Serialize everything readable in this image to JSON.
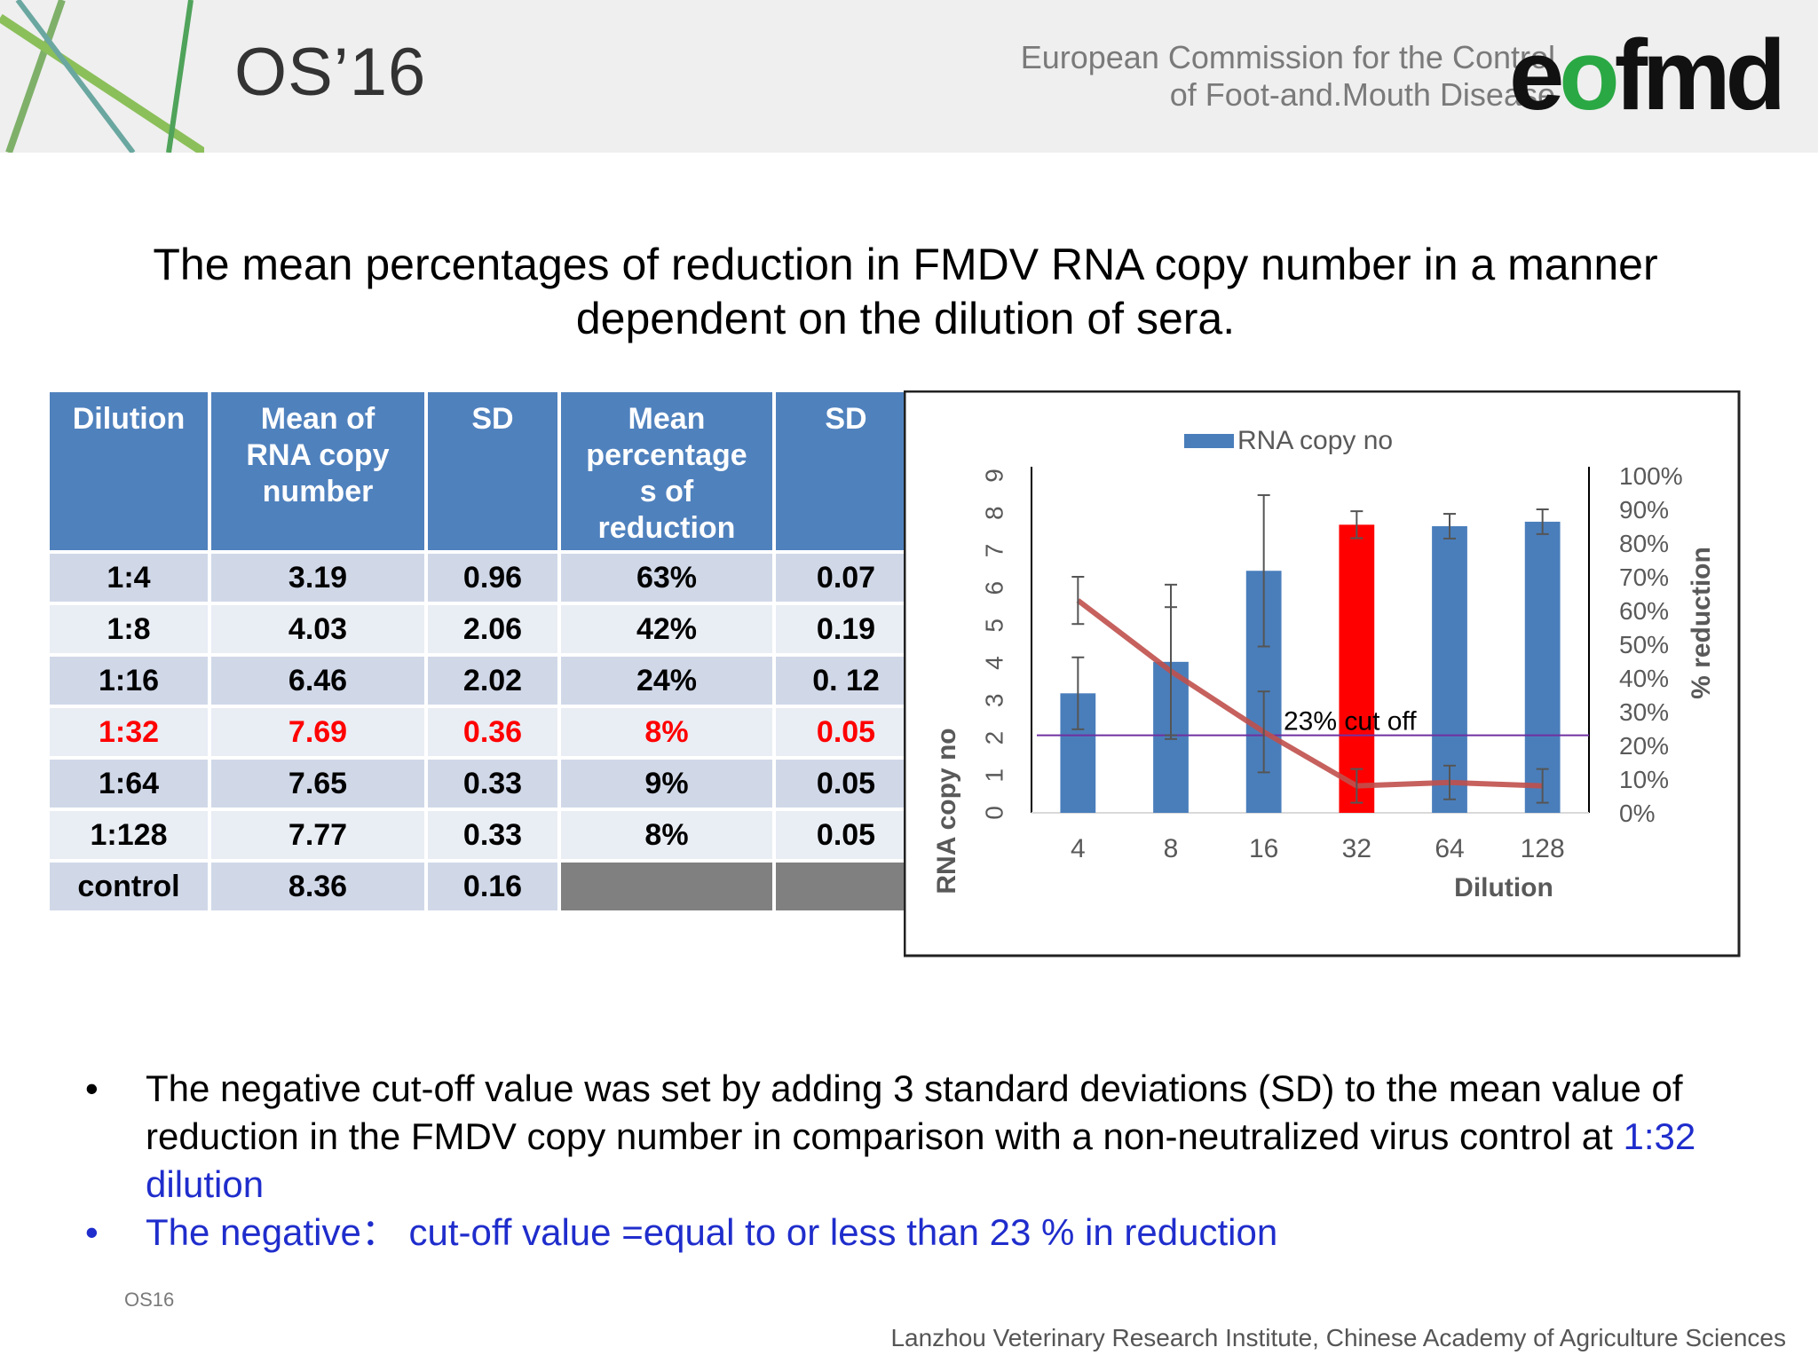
{
  "header": {
    "conference": "OS’16",
    "commission_line1": "European Commission for the Control",
    "commission_line2": "of Foot-and.Mouth Disease",
    "logo_a": "e",
    "logo_b": "o",
    "logo_c": "fmd",
    "colors": {
      "banner": "#efefef",
      "logo_accent": "#2aa844"
    }
  },
  "title": {
    "line1": "The mean percentages of reduction in FMDV RNA copy number in a manner",
    "line2": "dependent on the dilution of sera."
  },
  "table": {
    "headers": [
      [
        "Dilution"
      ],
      [
        "Mean of",
        "RNA copy",
        "number"
      ],
      [
        "SD"
      ],
      [
        "Mean",
        "percentage",
        "s of",
        "reduction"
      ],
      [
        "SD"
      ]
    ],
    "rows": [
      [
        "1:4",
        "3.19",
        "0.96",
        "63%",
        "0.07"
      ],
      [
        "1:8",
        "4.03",
        "2.06",
        "42%",
        "0.19"
      ],
      [
        "1:16",
        "6.46",
        "2.02",
        "24%",
        "0. 12"
      ],
      [
        "1:32",
        "7.69",
        "0.36",
        "8%",
        "0.05"
      ],
      [
        "1:64",
        "7.65",
        "0.33",
        "9%",
        "0.05"
      ],
      [
        "1:128",
        "7.77",
        "0.33",
        "8%",
        "0.05"
      ],
      [
        "control",
        "8.36",
        "0.16",
        "",
        ""
      ]
    ],
    "highlight_color": "#ff0000"
  },
  "chart_data": {
    "type": "bar",
    "categories": [
      "4",
      "8",
      "16",
      "32",
      "64",
      "128"
    ],
    "series": [
      {
        "name": "RNA  copy no",
        "axis": "left",
        "values": [
          3.19,
          4.03,
          6.46,
          7.69,
          7.65,
          7.77
        ],
        "errors": [
          0.96,
          2.06,
          2.02,
          0.36,
          0.33,
          0.33
        ],
        "color": "#4a7ebb",
        "highlight_index": 3,
        "highlight_color": "#ff0000"
      },
      {
        "name": "% reduction",
        "axis": "right",
        "type": "line",
        "values": [
          63,
          42,
          24,
          8,
          9,
          8
        ],
        "errors": [
          7,
          19,
          12,
          5,
          5,
          5
        ],
        "color": "#c0504d"
      }
    ],
    "reference_line": {
      "value": 23,
      "axis": "right",
      "label": "23% cut off",
      "color": "#7030a0"
    },
    "xlabel": "Dilution",
    "ylabel": "RNA copy no",
    "y2label": "% reduction",
    "ylim": [
      0,
      9
    ],
    "y2lim": [
      0,
      100
    ],
    "yticks": [
      "0",
      "1",
      "2",
      "3",
      "4",
      "5",
      "6",
      "7",
      "8",
      "9"
    ],
    "y2ticks": [
      "0%",
      "10%",
      "20%",
      "30%",
      "40%",
      "50%",
      "60%",
      "70%",
      "80%",
      "90%",
      "100%"
    ],
    "legend": "top"
  },
  "bullets": {
    "b1_symbol": "•",
    "b1_text": "The negative cut-off value was set by adding 3 standard deviations (SD) to the mean value of reduction in the FMDV copy number in comparison with a non-neutralized virus control at ",
    "b1_link": "1:32 dilution",
    "b2_symbol": "•",
    "b2_text": "The negative：  cut-off value =equal to or less than 23 % in reduction",
    "accent_color": "#1f2dcc"
  },
  "footer": {
    "left": "OS16",
    "right": "Lanzhou Veterinary Research Institute, Chinese Academy of Agriculture Sciences"
  }
}
